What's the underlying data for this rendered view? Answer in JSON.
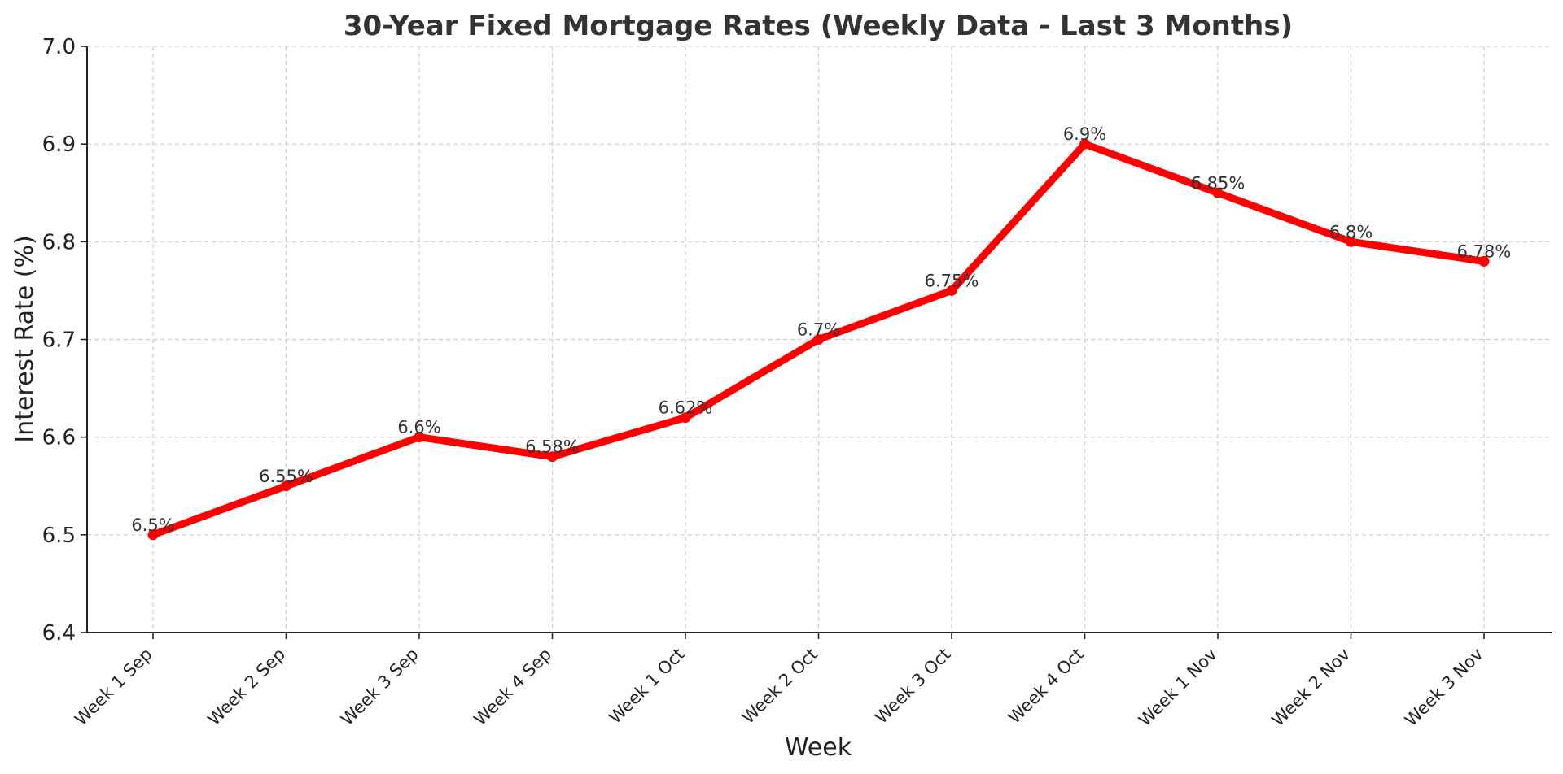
{
  "chart_data": {
    "type": "line",
    "title": "30-Year Fixed Mortgage Rates (Weekly Data - Last 3 Months)",
    "xlabel": "Week",
    "ylabel": "Interest Rate (%)",
    "categories": [
      "Week 1 Sep",
      "Week 2 Sep",
      "Week 3 Sep",
      "Week 4 Sep",
      "Week 1 Oct",
      "Week 2 Oct",
      "Week 3 Oct",
      "Week 4 Oct",
      "Week 1 Nov",
      "Week 2 Nov",
      "Week 3 Nov"
    ],
    "values": [
      6.5,
      6.55,
      6.6,
      6.58,
      6.62,
      6.7,
      6.75,
      6.9,
      6.85,
      6.8,
      6.78
    ],
    "data_labels": [
      "6.5%",
      "6.55%",
      "6.6%",
      "6.58%",
      "6.62%",
      "6.7%",
      "6.75%",
      "6.9%",
      "6.85%",
      "6.8%",
      "6.78%"
    ],
    "ylim": [
      6.4,
      7.0
    ],
    "yticks": [
      "6.4",
      "6.5",
      "6.6",
      "6.7",
      "6.8",
      "6.9",
      "7.0"
    ],
    "grid": true,
    "line_color": "#ff0000",
    "legend": "none"
  }
}
